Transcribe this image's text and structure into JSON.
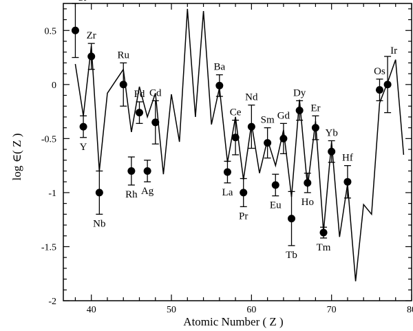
{
  "chart_data": {
    "type": "scatter",
    "xlabel": "Atomic Number ( Z )",
    "ylabel": "log ∈( Z )",
    "xlim": [
      36.5,
      80
    ],
    "ylim": [
      -2,
      0.75
    ],
    "xticks": [
      40,
      50,
      60,
      70,
      80
    ],
    "yticks": [
      -2,
      -1.5,
      -1,
      -0.5,
      0,
      0.5
    ],
    "ytick_labels": [
      "-2",
      "-1.5",
      "-1",
      "-0.5",
      "0",
      "0.5"
    ],
    "points": [
      {
        "label": "Sr",
        "x": 38,
        "y": 0.5,
        "err_lo": 0.25,
        "err_hi": 0.25,
        "label_pos": "above-right"
      },
      {
        "label": "Y",
        "x": 39,
        "y": -0.39,
        "err_lo": 0.1,
        "err_hi": 0.1,
        "label_pos": "below"
      },
      {
        "label": "Zr",
        "x": 40,
        "y": 0.26,
        "err_lo": 0.12,
        "err_hi": 0.12,
        "label_pos": "above"
      },
      {
        "label": "Nb",
        "x": 41,
        "y": -1.0,
        "err_lo": 0.2,
        "err_hi": 0.2,
        "label_pos": "below"
      },
      {
        "label": "Ru",
        "x": 44,
        "y": 0.0,
        "err_lo": 0.2,
        "err_hi": 0.2,
        "label_pos": "above"
      },
      {
        "label": "Rh",
        "x": 45,
        "y": -0.8,
        "err_lo": 0.13,
        "err_hi": 0.13,
        "label_pos": "below"
      },
      {
        "label": "Pd",
        "x": 46,
        "y": -0.26,
        "err_lo": 0.1,
        "err_hi": 0.1,
        "label_pos": "above"
      },
      {
        "label": "Ag",
        "x": 47,
        "y": -0.8,
        "err_lo": 0.1,
        "err_hi": 0.1,
        "label_pos": "below"
      },
      {
        "label": "Cd",
        "x": 48,
        "y": -0.35,
        "err_lo": 0.2,
        "err_hi": 0.2,
        "label_pos": "above"
      },
      {
        "label": "Ba",
        "x": 56,
        "y": -0.01,
        "err_lo": 0.1,
        "err_hi": 0.1,
        "label_pos": "above"
      },
      {
        "label": "La",
        "x": 57,
        "y": -0.81,
        "err_lo": 0.1,
        "err_hi": 0.1,
        "label_pos": "below"
      },
      {
        "label": "Ce",
        "x": 58,
        "y": -0.49,
        "err_lo": 0.16,
        "err_hi": 0.16,
        "label_pos": "above"
      },
      {
        "label": "Pr",
        "x": 59,
        "y": -1.0,
        "err_lo": 0.13,
        "err_hi": 0.13,
        "label_pos": "below"
      },
      {
        "label": "Nd",
        "x": 60,
        "y": -0.39,
        "err_lo": 0.2,
        "err_hi": 0.2,
        "label_pos": "above"
      },
      {
        "label": "Sm",
        "x": 62,
        "y": -0.54,
        "err_lo": 0.14,
        "err_hi": 0.14,
        "label_pos": "above"
      },
      {
        "label": "Eu",
        "x": 63,
        "y": -0.93,
        "err_lo": 0.1,
        "err_hi": 0.1,
        "label_pos": "below"
      },
      {
        "label": "Gd",
        "x": 64,
        "y": -0.5,
        "err_lo": 0.14,
        "err_hi": 0.14,
        "label_pos": "above"
      },
      {
        "label": "Tb",
        "x": 65,
        "y": -1.24,
        "err_lo": 0.25,
        "err_hi": 0.25,
        "label_pos": "below"
      },
      {
        "label": "Dy",
        "x": 66,
        "y": -0.24,
        "err_lo": 0.09,
        "err_hi": 0.09,
        "label_pos": "above"
      },
      {
        "label": "Ho",
        "x": 67,
        "y": -0.91,
        "err_lo": 0.09,
        "err_hi": 0.09,
        "label_pos": "below"
      },
      {
        "label": "Er",
        "x": 68,
        "y": -0.4,
        "err_lo": 0.11,
        "err_hi": 0.11,
        "label_pos": "above"
      },
      {
        "label": "Tm",
        "x": 69,
        "y": -1.37,
        "err_lo": 0.05,
        "err_hi": 0.05,
        "label_pos": "below"
      },
      {
        "label": "Yb",
        "x": 70,
        "y": -0.62,
        "err_lo": 0.1,
        "err_hi": 0.1,
        "label_pos": "above"
      },
      {
        "label": "Hf",
        "x": 72,
        "y": -0.9,
        "err_lo": 0.15,
        "err_hi": 0.15,
        "label_pos": "above"
      },
      {
        "label": "Os",
        "x": 76,
        "y": -0.05,
        "err_lo": 0.1,
        "err_hi": 0.1,
        "label_pos": "above"
      },
      {
        "label": "Ir",
        "x": 77,
        "y": 0.0,
        "err_lo": 0.26,
        "err_hi": 0.26,
        "label_pos": "above-right"
      }
    ],
    "line": {
      "x": [
        38,
        39,
        40,
        41,
        42,
        43,
        44,
        45,
        46,
        47,
        48,
        49,
        50,
        51,
        52,
        53,
        54,
        55,
        56,
        57,
        58,
        59,
        60,
        61,
        62,
        63,
        64,
        65,
        66,
        67,
        68,
        69,
        70,
        71,
        72,
        73,
        74,
        75,
        76,
        77,
        78,
        79
      ],
      "y": [
        0.19,
        -0.29,
        0.36,
        -0.8,
        -0.08,
        0.03,
        0.14,
        -0.44,
        -0.02,
        -0.3,
        -0.08,
        -0.83,
        -0.09,
        -0.53,
        0.7,
        -0.3,
        0.68,
        -0.37,
        -0.03,
        -0.72,
        -0.3,
        -0.88,
        -0.36,
        -0.82,
        -0.51,
        -0.75,
        -0.42,
        -1.04,
        -0.14,
        -0.95,
        -0.34,
        -1.36,
        -0.53,
        -1.41,
        -0.92,
        -1.82,
        -1.11,
        -1.2,
        -0.17,
        0.02,
        0.23,
        -0.65
      ]
    },
    "colors": {
      "marker": "#000000",
      "line": "#000000"
    }
  }
}
